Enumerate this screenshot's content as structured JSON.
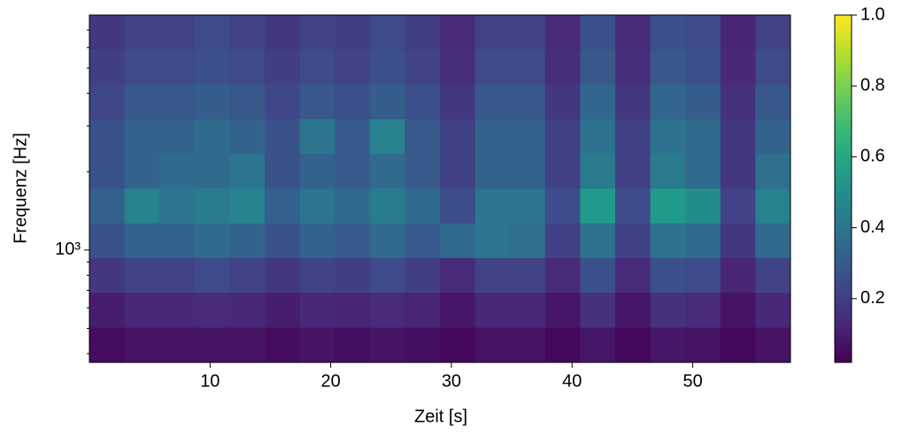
{
  "chart_data": {
    "type": "heatmap",
    "colormap": "viridis",
    "xlabel": "Zeit [s]",
    "ylabel": "Frequenz [Hz]",
    "xlim": [
      0,
      58.1
    ],
    "xticks": [
      10,
      20,
      30,
      40,
      50
    ],
    "ylim": [
      370,
      8000
    ],
    "yscale": "log",
    "yticks": [
      {
        "value": 1000,
        "label": "10³"
      }
    ],
    "yminorticks": [
      400,
      500,
      600,
      700,
      800,
      900,
      2000,
      3000,
      4000,
      5000,
      6000,
      7000
    ],
    "z": [
      [
        0.18,
        0.22,
        0.22,
        0.24,
        0.22,
        0.18,
        0.22,
        0.2,
        0.24,
        0.2,
        0.14,
        0.22,
        0.22,
        0.14,
        0.26,
        0.14,
        0.26,
        0.24,
        0.12,
        0.22
      ],
      [
        0.2,
        0.24,
        0.24,
        0.26,
        0.24,
        0.2,
        0.24,
        0.22,
        0.26,
        0.22,
        0.15,
        0.24,
        0.24,
        0.15,
        0.29,
        0.15,
        0.29,
        0.26,
        0.13,
        0.24
      ],
      [
        0.23,
        0.29,
        0.29,
        0.31,
        0.29,
        0.23,
        0.29,
        0.26,
        0.31,
        0.26,
        0.18,
        0.29,
        0.29,
        0.18,
        0.34,
        0.18,
        0.34,
        0.31,
        0.16,
        0.29
      ],
      [
        0.27,
        0.33,
        0.33,
        0.36,
        0.33,
        0.27,
        0.4,
        0.3,
        0.45,
        0.3,
        0.21,
        0.33,
        0.33,
        0.21,
        0.39,
        0.21,
        0.39,
        0.36,
        0.18,
        0.33
      ],
      [
        0.27,
        0.33,
        0.36,
        0.36,
        0.4,
        0.27,
        0.33,
        0.3,
        0.36,
        0.3,
        0.21,
        0.33,
        0.33,
        0.21,
        0.42,
        0.21,
        0.42,
        0.36,
        0.18,
        0.38
      ],
      [
        0.32,
        0.45,
        0.4,
        0.43,
        0.45,
        0.32,
        0.4,
        0.36,
        0.43,
        0.36,
        0.25,
        0.4,
        0.4,
        0.25,
        0.55,
        0.25,
        0.55,
        0.5,
        0.22,
        0.45
      ],
      [
        0.27,
        0.33,
        0.33,
        0.36,
        0.33,
        0.27,
        0.33,
        0.3,
        0.36,
        0.3,
        0.35,
        0.4,
        0.38,
        0.21,
        0.39,
        0.21,
        0.39,
        0.36,
        0.18,
        0.35
      ],
      [
        0.18,
        0.22,
        0.22,
        0.24,
        0.22,
        0.18,
        0.22,
        0.2,
        0.24,
        0.2,
        0.14,
        0.22,
        0.22,
        0.14,
        0.26,
        0.14,
        0.26,
        0.24,
        0.12,
        0.22
      ],
      [
        0.1,
        0.13,
        0.13,
        0.14,
        0.13,
        0.1,
        0.13,
        0.12,
        0.14,
        0.12,
        0.08,
        0.13,
        0.13,
        0.08,
        0.16,
        0.08,
        0.16,
        0.14,
        0.07,
        0.13
      ],
      [
        0.05,
        0.07,
        0.07,
        0.07,
        0.07,
        0.05,
        0.07,
        0.06,
        0.07,
        0.06,
        0.04,
        0.07,
        0.07,
        0.04,
        0.08,
        0.04,
        0.08,
        0.07,
        0.04,
        0.07
      ]
    ],
    "colorbar": {
      "lim": [
        0.02,
        1
      ],
      "ticks": [
        0.2,
        0.4,
        0.6,
        0.8,
        {
          "value": 1,
          "label": "1.0"
        }
      ]
    }
  }
}
